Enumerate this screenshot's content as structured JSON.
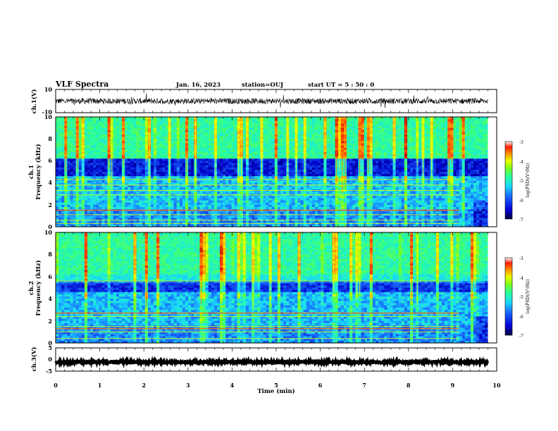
{
  "header": {
    "title": "VLF Spectra",
    "date": "Jan. 16, 2023",
    "station": "station=OUJ",
    "start": "start UT =  5 : 50 : 0"
  },
  "colors": {
    "spectrogram_scale": [
      "#00003a",
      "#0000c8",
      "#1a6cff",
      "#19d7ff",
      "#2bff9a",
      "#7dff1a",
      "#e8ff00",
      "#ff9a00",
      "#ff2200",
      "#b40000"
    ]
  },
  "chart_data": [
    {
      "id": "ch1-waveform",
      "type": "line",
      "ylabel": "ch.1(V)",
      "ylim": [
        -10,
        10
      ],
      "yticks": [
        "10",
        "-10"
      ],
      "xlim": [
        0,
        10
      ],
      "mean": 0,
      "amplitude": 2.5,
      "grid": false
    },
    {
      "id": "ch1-spectrogram",
      "type": "heatmap",
      "ylabel": "ch.1",
      "ylabel2": "Frequency (kHz)",
      "ylim": [
        0,
        10
      ],
      "yticks": [
        "0",
        "2",
        "4",
        "6",
        "8",
        "10"
      ],
      "xlim": [
        0,
        10
      ],
      "data_end_min": 9.8,
      "colorbar": {
        "range": [
          -7,
          -3
        ],
        "ticks": [
          "-3",
          "-4",
          "-5",
          "-6",
          "-7"
        ],
        "label": "log(PSD)(V²/Hz)"
      },
      "bands_khz": [
        0.3,
        0.6,
        1.1,
        1.5,
        2.9,
        3.3,
        3.8,
        4.3
      ],
      "quiet_band_khz": [
        4.5,
        6.2
      ]
    },
    {
      "id": "ch2-spectrogram",
      "type": "heatmap",
      "ylabel": "ch.2",
      "ylabel2": "Frequency (kHz)",
      "ylim": [
        0,
        10
      ],
      "yticks": [
        "0",
        "2",
        "4",
        "6",
        "8",
        "10"
      ],
      "xlim": [
        0,
        10
      ],
      "data_end_min": 9.8,
      "colorbar": {
        "range": [
          -7,
          -3
        ],
        "ticks": [
          "-3",
          "-4",
          "-5",
          "-6",
          "-7"
        ],
        "label": "log(PSD)(V²/Hz)"
      },
      "bands_khz": [
        0.4,
        1.0,
        1.3,
        1.5,
        2.4,
        2.7,
        5.6
      ],
      "quiet_band_khz": [
        4.6,
        5.5
      ]
    },
    {
      "id": "ch3-waveform",
      "type": "line",
      "ylabel": "ch.3(V)",
      "ylim": [
        -5,
        5
      ],
      "yticks": [
        "5",
        "0",
        "-5"
      ],
      "xlim": [
        0,
        10
      ],
      "mean": -1.1,
      "amplitude": 0.35,
      "grid": false
    }
  ],
  "xaxis": {
    "label": "Time (min)",
    "ticks": [
      "0",
      "1",
      "2",
      "3",
      "4",
      "5",
      "6",
      "7",
      "8",
      "9",
      "10"
    ]
  }
}
